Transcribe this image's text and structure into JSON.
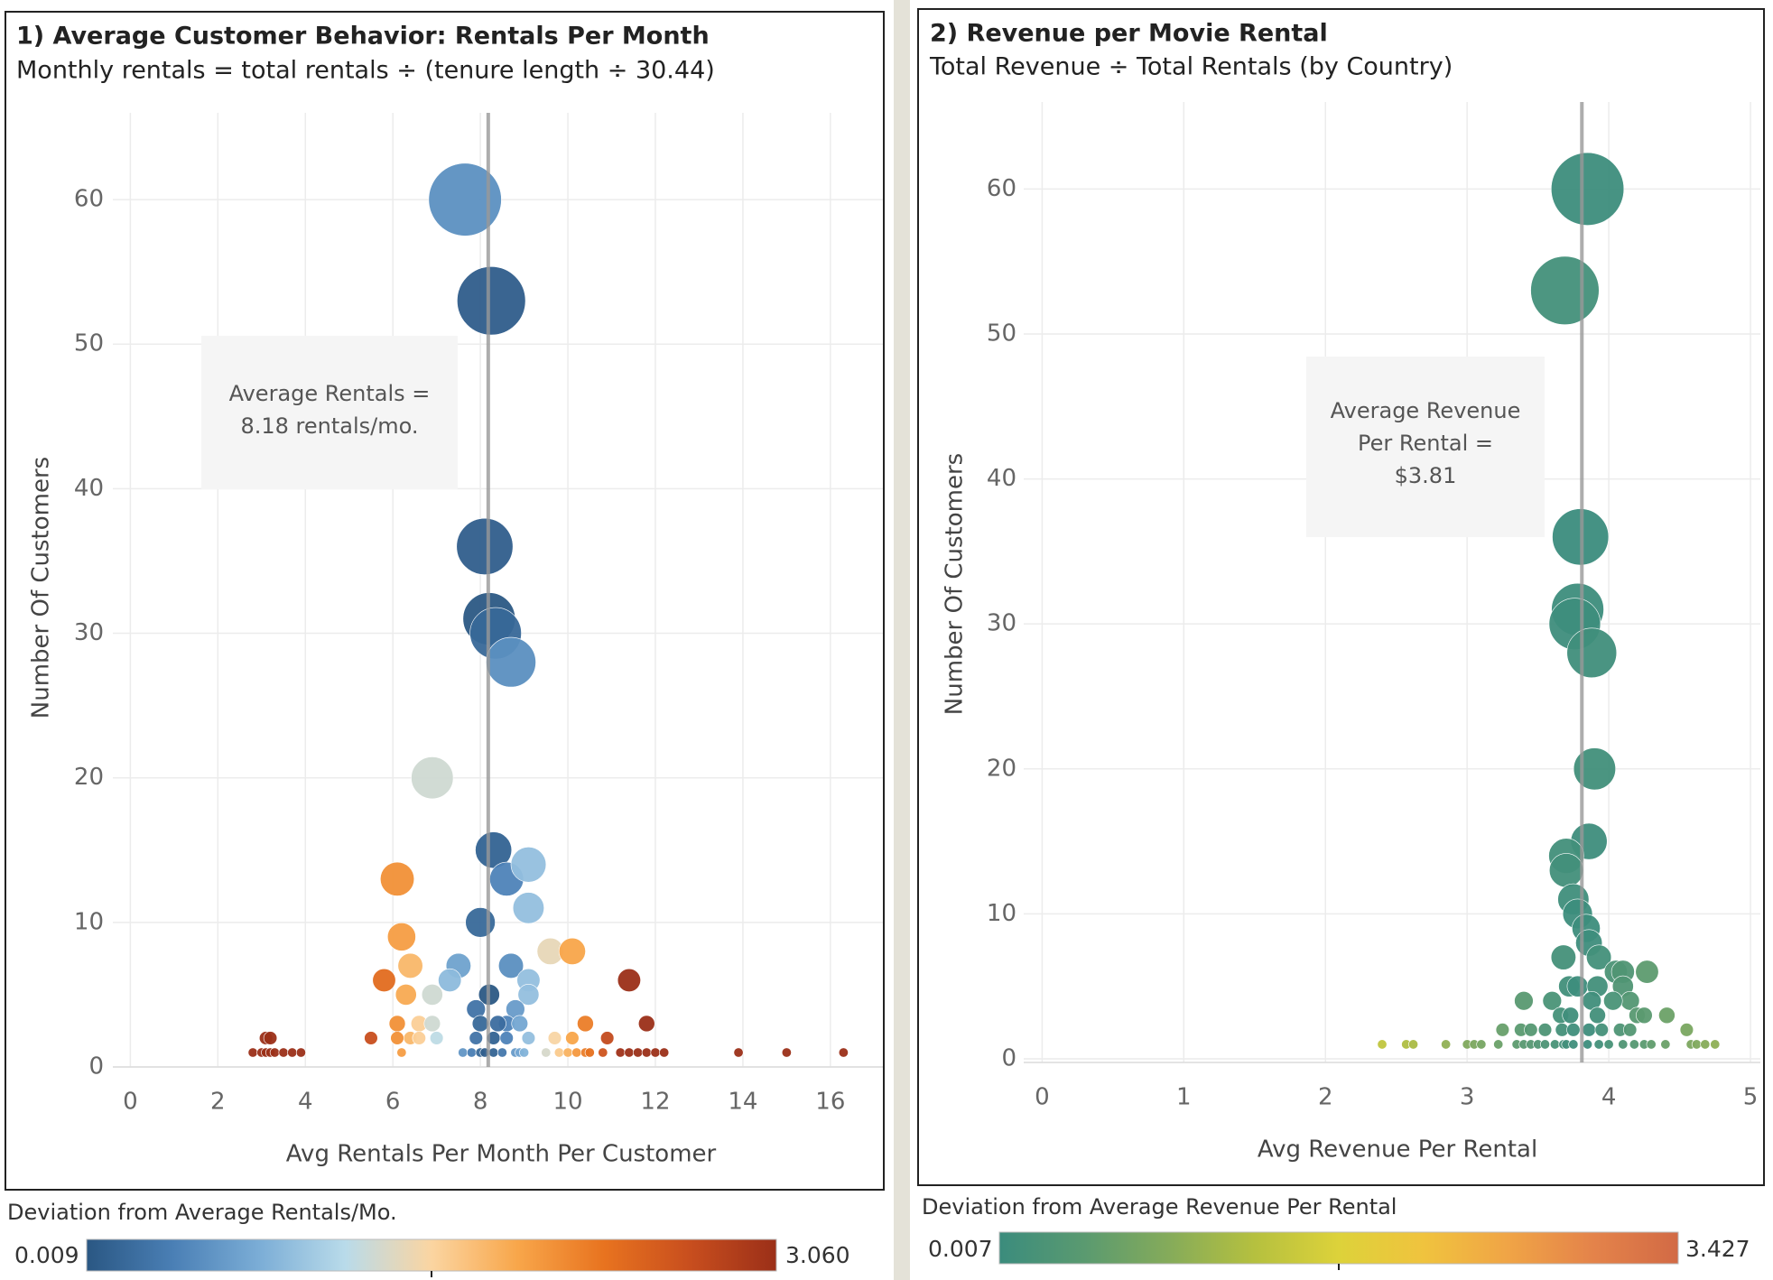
{
  "chart_data": [
    {
      "type": "scatter",
      "title": "1) Average Customer Behavior: Rentals Per Month",
      "subtitle": "Monthly rentals = total rentals ÷ (tenure length ÷ 30.44)",
      "x_label": "Avg Rentals Per Month Per Customer",
      "y_label": "Number Of Customers",
      "xlim": [
        -0.4,
        17.2
      ],
      "ylim": [
        0,
        66
      ],
      "xticks": [
        0,
        2,
        4,
        6,
        8,
        10,
        12,
        14,
        16
      ],
      "yticks": [
        0,
        10,
        20,
        30,
        40,
        50,
        60
      ],
      "grid": true,
      "reference_line": 8.18,
      "annotation": [
        "Average Rentals =",
        "8.18 rentals/mo."
      ],
      "x": [
        7.65,
        8.25,
        8.1,
        8.2,
        8.35,
        8.7,
        6.9,
        8.3,
        6.1,
        8.6,
        9.1,
        9.1,
        6.2,
        8.0,
        9.6,
        10.1,
        5.8,
        6.4,
        7.5,
        7.3,
        8.7,
        9.1,
        11.4,
        6.3,
        6.9,
        8.2,
        9.1,
        7.9,
        8.8,
        8.6,
        6.1,
        6.6,
        6.9,
        8.0,
        8.4,
        8.9,
        10.4,
        11.8,
        5.5,
        6.1,
        6.4,
        6.6,
        7.0,
        7.9,
        8.3,
        8.6,
        9.1,
        9.7,
        10.1,
        10.9,
        3.1,
        3.2,
        2.8,
        3.0,
        3.1,
        3.2,
        3.3,
        3.5,
        3.7,
        3.9,
        6.2,
        7.6,
        7.8,
        8.0,
        8.1,
        8.3,
        8.5,
        8.8,
        8.9,
        9.0,
        9.5,
        9.8,
        10.0,
        10.2,
        10.4,
        10.5,
        10.8,
        11.2,
        11.4,
        11.6,
        11.8,
        12.0,
        12.2,
        13.9,
        15.0,
        16.3
      ],
      "values": [
        60,
        53,
        36,
        31,
        30,
        28,
        20,
        15,
        13,
        13,
        14,
        11,
        9,
        10,
        8,
        8,
        6,
        7,
        7,
        6,
        7,
        6,
        6,
        5,
        5,
        5,
        5,
        4,
        4,
        3,
        3,
        3,
        3,
        3,
        3,
        3,
        3,
        3,
        2,
        2,
        2,
        2,
        2,
        2,
        2,
        2,
        2,
        2,
        2,
        2,
        2,
        2,
        1,
        1,
        1,
        1,
        1,
        1,
        1,
        1,
        1,
        1,
        1,
        1,
        1,
        1,
        1,
        1,
        1,
        1,
        1,
        1,
        1,
        1,
        1,
        1,
        1,
        1,
        1,
        1,
        1,
        1,
        1,
        1,
        1,
        1
      ],
      "color_legend": {
        "title": "Deviation from Average Rentals/Mo.",
        "min": 0.009,
        "max": {
          "value": 3.06,
          "label": "3.060"
        },
        "colors": [
          "#2a5783",
          "#4a7fb5",
          "#7badd6",
          "#b9dbea",
          "#fbd5a1",
          "#f8a64a",
          "#e8731f",
          "#c84e1e",
          "#9b2f18"
        ]
      }
    },
    {
      "type": "scatter",
      "title": "2) Revenue per Movie Rental",
      "subtitle": "Total Revenue ÷ Total Rentals (by Country)",
      "x_label": "Avg Revenue Per Rental",
      "y_label": "Number Of Customers",
      "xlim": [
        -0.13,
        5.07
      ],
      "ylim": [
        -0.25,
        66
      ],
      "xticks": [
        0,
        1,
        2,
        3,
        4,
        5
      ],
      "yticks": [
        0,
        10,
        20,
        30,
        40,
        50,
        60
      ],
      "grid": true,
      "reference_line": 3.81,
      "annotation": [
        "Average Revenue",
        "Per Rental =",
        "$3.81"
      ],
      "x": [
        3.85,
        3.69,
        3.8,
        3.78,
        3.76,
        3.88,
        3.9,
        3.86,
        3.7,
        3.7,
        3.75,
        3.78,
        3.84,
        3.86,
        3.68,
        3.93,
        4.05,
        4.1,
        4.27,
        3.72,
        3.78,
        3.92,
        4.1,
        4.15,
        3.4,
        3.6,
        3.88,
        4.03,
        3.66,
        3.73,
        3.92,
        4.2,
        4.25,
        4.41,
        3.25,
        3.38,
        3.45,
        3.55,
        3.67,
        3.75,
        3.86,
        3.95,
        4.08,
        4.15,
        4.55,
        2.4,
        2.57,
        2.62,
        2.85,
        3.0,
        3.05,
        3.1,
        3.22,
        3.35,
        3.4,
        3.45,
        3.5,
        3.55,
        3.62,
        3.68,
        3.7,
        3.75,
        3.85,
        3.93,
        4.0,
        4.1,
        4.18,
        4.25,
        4.3,
        4.4,
        4.58,
        4.62,
        4.68,
        4.75
      ],
      "values": [
        60,
        53,
        36,
        31,
        30,
        28,
        20,
        15,
        14,
        13,
        11,
        10,
        9,
        8,
        7,
        7,
        6,
        6,
        6,
        5,
        5,
        5,
        5,
        4,
        4,
        4,
        4,
        4,
        3,
        3,
        3,
        3,
        3,
        3,
        2,
        2,
        2,
        2,
        2,
        2,
        2,
        2,
        2,
        2,
        2,
        1,
        1,
        1,
        1,
        1,
        1,
        1,
        1,
        1,
        1,
        1,
        1,
        1,
        1,
        1,
        1,
        1,
        1,
        1,
        1,
        1,
        1,
        1,
        1,
        1,
        1,
        1,
        1,
        1
      ],
      "color_legend": {
        "title": "Deviation from Average Revenue Per Rental",
        "min": 0.007,
        "max": 3.427,
        "colors": [
          "#3b8c7d",
          "#5a9a70",
          "#85ab5a",
          "#b5c03f",
          "#ddd23a",
          "#f0c33e",
          "#f0a446",
          "#e4834a",
          "#d26a45"
        ]
      }
    }
  ]
}
